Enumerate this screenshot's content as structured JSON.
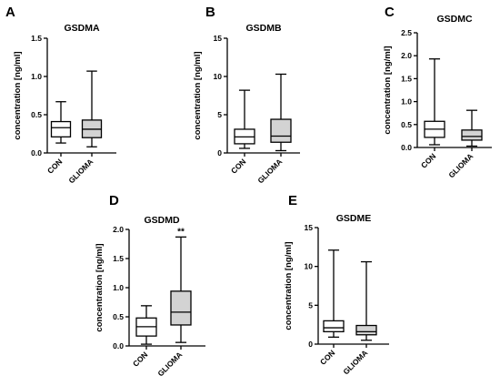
{
  "chart_data": [
    {
      "panel": "A",
      "type": "box",
      "title": "GSDMA",
      "ylabel": "concentration [ng/ml]",
      "ylim": [
        0,
        1.5
      ],
      "yticks": [
        "0.0",
        "0.5",
        "1.0",
        "1.5"
      ],
      "categories": [
        "CON",
        "GLIOMA"
      ],
      "series": [
        {
          "min": 0.13,
          "q1": 0.21,
          "median": 0.33,
          "q3": 0.41,
          "max": 0.67,
          "fill": "#ffffff"
        },
        {
          "min": 0.08,
          "q1": 0.2,
          "median": 0.31,
          "q3": 0.43,
          "max": 1.07,
          "fill": "#d3d3d3"
        }
      ],
      "annotation": ""
    },
    {
      "panel": "B",
      "type": "box",
      "title": "GSDMB",
      "ylabel": "concentration [ng/ml]",
      "ylim": [
        0,
        15
      ],
      "yticks": [
        "0",
        "5",
        "10",
        "15"
      ],
      "categories": [
        "CON",
        "GLIOMA"
      ],
      "series": [
        {
          "min": 0.6,
          "q1": 1.2,
          "median": 2.1,
          "q3": 3.1,
          "max": 8.2,
          "fill": "#ffffff"
        },
        {
          "min": 0.3,
          "q1": 1.4,
          "median": 2.2,
          "q3": 4.4,
          "max": 10.3,
          "fill": "#d3d3d3"
        }
      ],
      "annotation": ""
    },
    {
      "panel": "C",
      "type": "box",
      "title": "GSDMC",
      "ylabel": "concentration [ng/ml]",
      "ylim": [
        0,
        2.5
      ],
      "yticks": [
        "0.0",
        "0.5",
        "1.0",
        "1.5",
        "2.0",
        "2.5"
      ],
      "categories": [
        "CON",
        "GLIOMA"
      ],
      "series": [
        {
          "min": 0.06,
          "q1": 0.22,
          "median": 0.4,
          "q3": 0.57,
          "max": 1.93,
          "fill": "#ffffff"
        },
        {
          "min": 0.03,
          "q1": 0.16,
          "median": 0.24,
          "q3": 0.38,
          "max": 0.81,
          "fill": "#d3d3d3"
        }
      ],
      "annotation": ""
    },
    {
      "panel": "D",
      "type": "box",
      "title": "GSDMD",
      "ylabel": "concentration [ng/ml]",
      "ylim": [
        0,
        2.0
      ],
      "yticks": [
        "0.0",
        "0.5",
        "1.0",
        "1.5",
        "2.0"
      ],
      "categories": [
        "CON",
        "GLIOMA"
      ],
      "series": [
        {
          "min": 0.03,
          "q1": 0.17,
          "median": 0.33,
          "q3": 0.48,
          "max": 0.69,
          "fill": "#ffffff"
        },
        {
          "min": 0.06,
          "q1": 0.36,
          "median": 0.58,
          "q3": 0.94,
          "max": 1.87,
          "fill": "#d3d3d3"
        }
      ],
      "annotation": "**"
    },
    {
      "panel": "E",
      "type": "box",
      "title": "GSDME",
      "ylabel": "concentration [ng/ml]",
      "ylim": [
        0,
        15
      ],
      "yticks": [
        "0",
        "5",
        "10",
        "15"
      ],
      "categories": [
        "CON",
        "GLIOMA"
      ],
      "series": [
        {
          "min": 0.9,
          "q1": 1.6,
          "median": 2.1,
          "q3": 3.0,
          "max": 12.1,
          "fill": "#ffffff"
        },
        {
          "min": 0.5,
          "q1": 1.2,
          "median": 1.6,
          "q3": 2.4,
          "max": 10.6,
          "fill": "#d3d3d3"
        }
      ],
      "annotation": ""
    }
  ]
}
